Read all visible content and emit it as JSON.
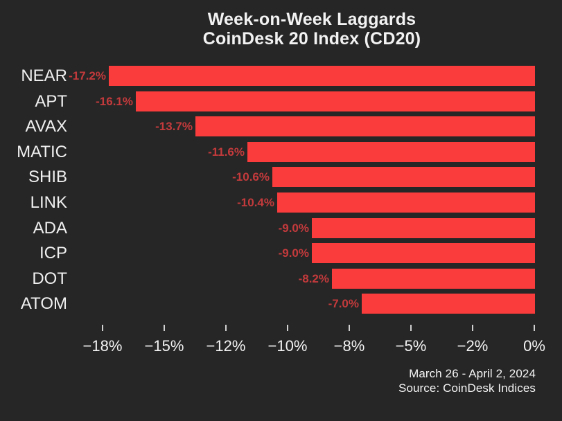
{
  "chart_data": {
    "type": "bar",
    "orientation": "horizontal",
    "title": "Week-on-Week Laggards",
    "subtitle": "CoinDesk 20 Index (CD20)",
    "categories": [
      "NEAR",
      "APT",
      "AVAX",
      "MATIC",
      "SHIB",
      "LINK",
      "ADA",
      "ICP",
      "DOT",
      "ATOM"
    ],
    "values": [
      -17.2,
      -16.1,
      -13.7,
      -11.6,
      -10.6,
      -10.4,
      -9.0,
      -9.0,
      -8.2,
      -7.0
    ],
    "value_labels": [
      "-17.2%",
      "-16.1%",
      "-13.7%",
      "-11.6%",
      "-10.6%",
      "-10.4%",
      "-9.0%",
      "-9.0%",
      "-8.2%",
      "-7.0%"
    ],
    "x_tick_labels": [
      "−18%",
      "−15%",
      "−12%",
      "−10%",
      "−8%",
      "−5%",
      "−2%",
      "0%"
    ],
    "x_tick_values": [
      -18,
      -15,
      -12,
      -10,
      -8,
      -5,
      -2,
      0
    ],
    "xlim": [
      -18,
      0
    ],
    "grid": false,
    "legend": false,
    "footer": {
      "date_range": "March 26 - April 2, 2024",
      "source": "Source: CoinDesk Indices"
    },
    "colors": {
      "background": "#262626",
      "bar": "#fa3c3c",
      "value_label": "#c43a3c",
      "text": "#f2f2f2"
    }
  }
}
